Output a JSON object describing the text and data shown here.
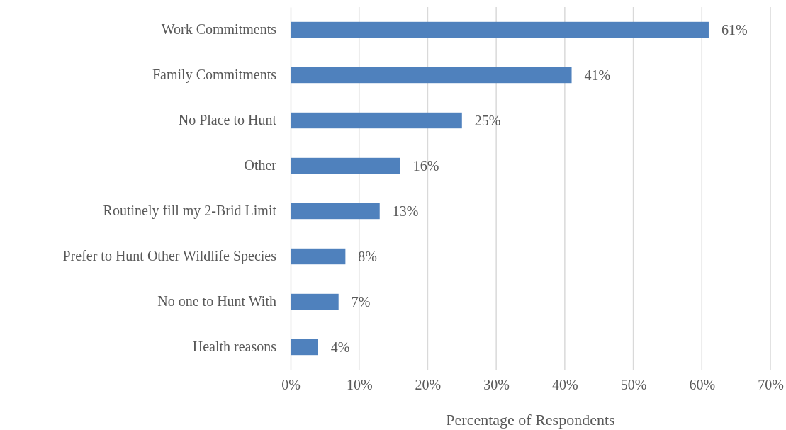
{
  "chart_data": {
    "type": "bar",
    "orientation": "horizontal",
    "categories": [
      "Work Commitments",
      "Family Commitments",
      "No Place to Hunt",
      "Other",
      "Routinely fill my 2-Brid Limit",
      "Prefer to Hunt Other Wildlife Species",
      "No one to Hunt With",
      "Health reasons"
    ],
    "values": [
      61,
      41,
      25,
      16,
      13,
      8,
      7,
      4
    ],
    "color": "#4f81bd",
    "xlabel": "Percentage of Respondents",
    "xlim": [
      0,
      70
    ],
    "xticks": [
      {
        "value": 0,
        "label": "0%"
      },
      {
        "value": 10,
        "label": "10%"
      },
      {
        "value": 20,
        "label": "20%"
      },
      {
        "value": 30,
        "label": "30%"
      },
      {
        "value": 40,
        "label": "40%"
      },
      {
        "value": 50,
        "label": "50%"
      },
      {
        "value": 60,
        "label": "60%"
      },
      {
        "value": 70,
        "label": "70%"
      }
    ],
    "value_labels": [
      "61%",
      "41%",
      "25%",
      "16%",
      "13%",
      "8%",
      "7%",
      "4%"
    ],
    "grid": "x"
  }
}
